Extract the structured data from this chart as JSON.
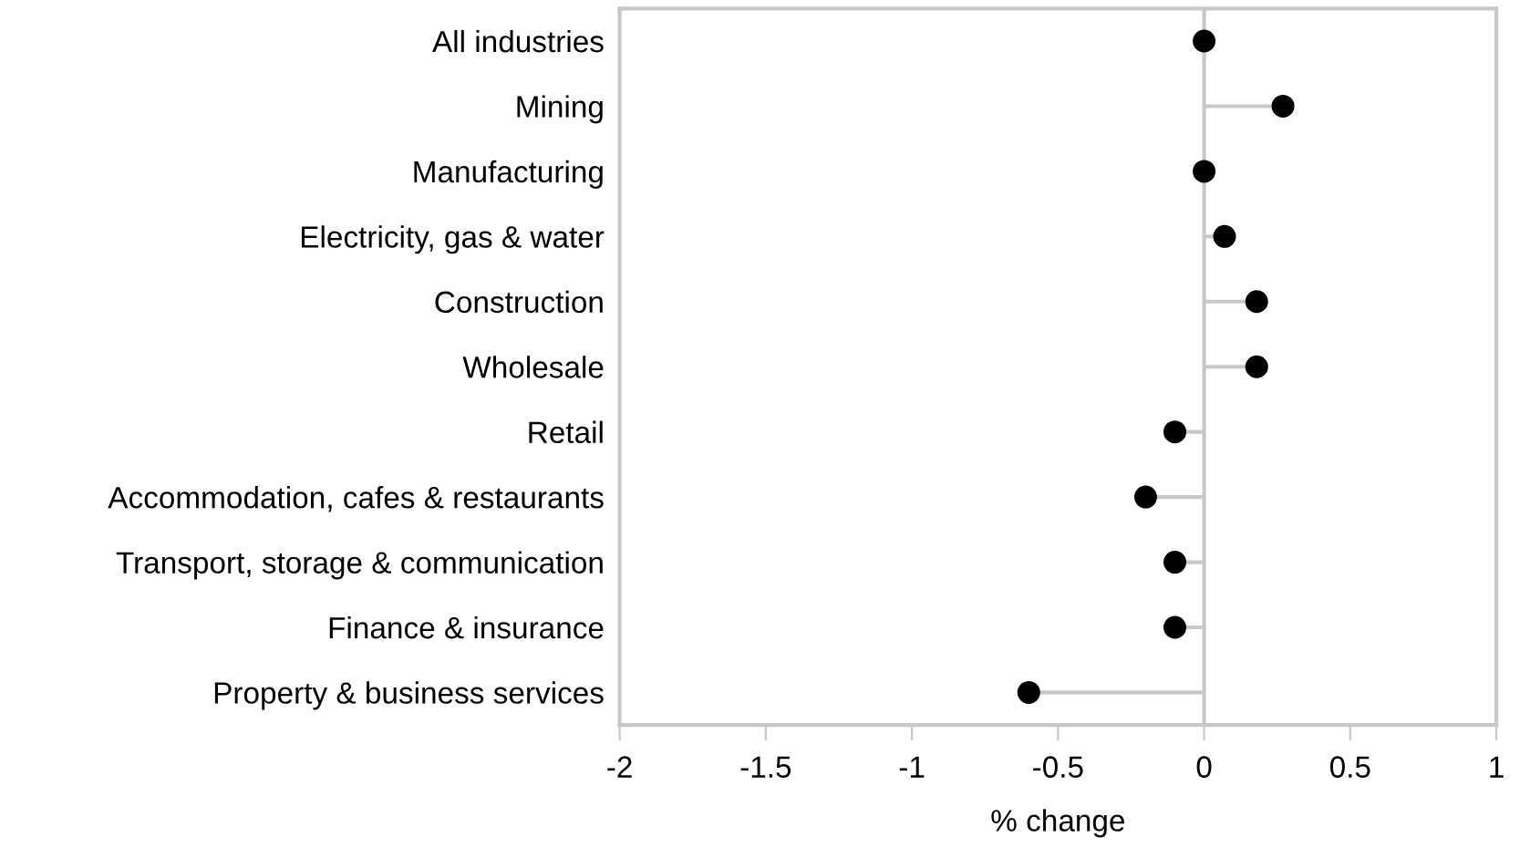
{
  "chart_data": {
    "type": "lollipop",
    "orientation": "horizontal",
    "xlabel": "% change",
    "categories": [
      "All industries",
      "Mining",
      "Manufacturing",
      "Electricity, gas & water",
      "Construction",
      "Wholesale",
      "Retail",
      "Accommodation, cafes & restaurants",
      "Transport, storage & communication",
      "Finance & insurance",
      "Property & business services"
    ],
    "values": [
      0,
      0.27,
      0,
      0.07,
      0.18,
      0.18,
      -0.1,
      -0.2,
      -0.1,
      -0.1,
      -0.6
    ],
    "color": "#000000",
    "ref_lines": [
      {
        "axis": "x",
        "value": 0,
        "color": "#c8c8c8"
      }
    ],
    "xlim": [
      -2,
      1
    ],
    "xticks": [
      -2,
      -1.5,
      -1,
      -0.5,
      0,
      0.5,
      1
    ],
    "marker": "circle"
  }
}
